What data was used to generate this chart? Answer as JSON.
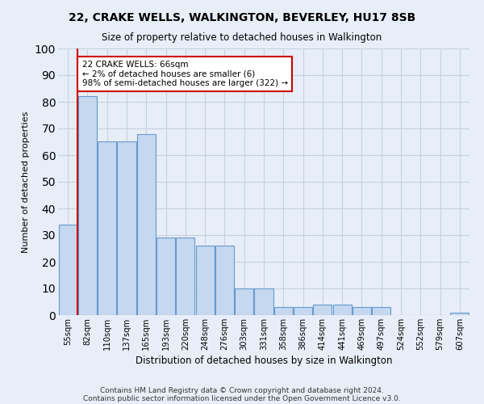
{
  "title": "22, CRAKE WELLS, WALKINGTON, BEVERLEY, HU17 8SB",
  "subtitle": "Size of property relative to detached houses in Walkington",
  "xlabel": "Distribution of detached houses by size in Walkington",
  "ylabel": "Number of detached properties",
  "bar_color": "#c5d8f0",
  "bar_edge_color": "#6699cc",
  "categories": [
    "55sqm",
    "82sqm",
    "110sqm",
    "137sqm",
    "165sqm",
    "193sqm",
    "220sqm",
    "248sqm",
    "276sqm",
    "303sqm",
    "331sqm",
    "358sqm",
    "386sqm",
    "414sqm",
    "441sqm",
    "469sqm",
    "497sqm",
    "524sqm",
    "552sqm",
    "579sqm",
    "607sqm"
  ],
  "values": [
    34,
    82,
    65,
    65,
    68,
    29,
    29,
    26,
    26,
    10,
    10,
    3,
    3,
    4,
    4,
    3,
    3,
    0,
    0,
    0,
    1
  ],
  "ylim": [
    0,
    100
  ],
  "yticks": [
    0,
    10,
    20,
    30,
    40,
    50,
    60,
    70,
    80,
    90,
    100
  ],
  "annotation_text": "22 CRAKE WELLS: 66sqm\n← 2% of detached houses are smaller (6)\n98% of semi-detached houses are larger (322) →",
  "annotation_box_facecolor": "#ffffff",
  "annotation_box_edgecolor": "#cc0000",
  "redline_x": 0.5,
  "footnote1": "Contains HM Land Registry data © Crown copyright and database right 2024.",
  "footnote2": "Contains public sector information licensed under the Open Government Licence v3.0.",
  "background_color": "#e8eef8",
  "grid_color": "#c8d0e0"
}
